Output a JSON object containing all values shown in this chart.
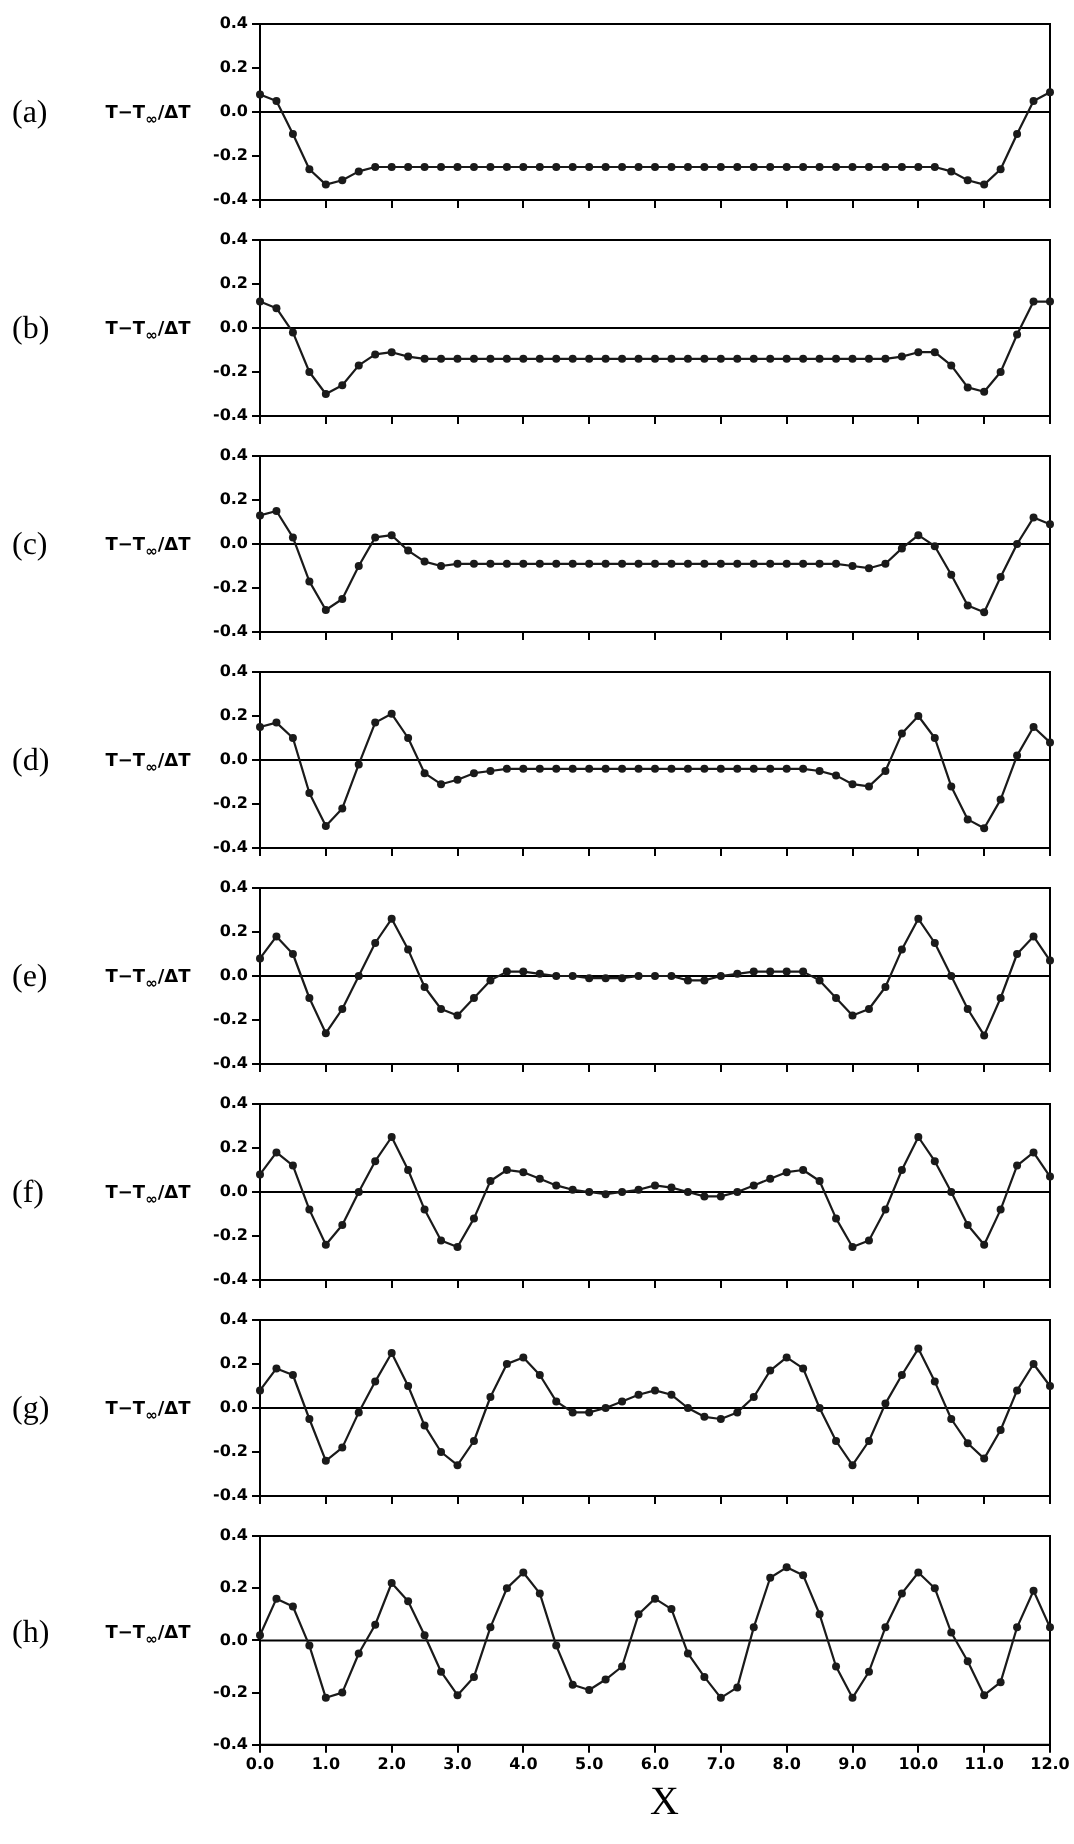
{
  "chart_data": [
    {
      "type": "line",
      "title": "(a)",
      "ylabel": "T−T$_{∞}$/ΔT",
      "xlim": [
        0,
        12
      ],
      "ylim": [
        -0.4,
        0.4
      ],
      "tick_labels": "y",
      "marker": "circle",
      "grid": false,
      "ref_lines": [
        {
          "axis": "y",
          "value": 0
        }
      ],
      "yticks": [
        {
          "value": -0.4,
          "label": "-0.4"
        },
        {
          "value": -0.2,
          "label": "-0.2"
        },
        {
          "value": 0,
          "label": "0.0"
        },
        {
          "value": 0.2,
          "label": "0.2"
        },
        {
          "value": 0.4,
          "label": "0.4"
        }
      ],
      "x": [
        0,
        0.25,
        0.5,
        0.75,
        1,
        1.25,
        1.5,
        1.75,
        2,
        2.25,
        2.5,
        2.75,
        3,
        3.25,
        3.5,
        3.75,
        4,
        4.25,
        4.5,
        4.75,
        5,
        5.25,
        5.5,
        5.75,
        6,
        6.25,
        6.5,
        6.75,
        7,
        7.25,
        7.5,
        7.75,
        8,
        8.25,
        8.5,
        8.75,
        9,
        9.25,
        9.5,
        9.75,
        10,
        10.25,
        10.5,
        10.75,
        11,
        11.25,
        11.5,
        11.75,
        12
      ],
      "series": [
        {
          "color": "#1a1a1a",
          "values": [
            0.08,
            0.05,
            -0.1,
            -0.26,
            -0.33,
            -0.31,
            -0.27,
            -0.25,
            -0.25,
            -0.25,
            -0.25,
            -0.25,
            -0.25,
            -0.25,
            -0.25,
            -0.25,
            -0.25,
            -0.25,
            -0.25,
            -0.25,
            -0.25,
            -0.25,
            -0.25,
            -0.25,
            -0.25,
            -0.25,
            -0.25,
            -0.25,
            -0.25,
            -0.25,
            -0.25,
            -0.25,
            -0.25,
            -0.25,
            -0.25,
            -0.25,
            -0.25,
            -0.25,
            -0.25,
            -0.25,
            -0.25,
            -0.25,
            -0.27,
            -0.31,
            -0.33,
            -0.26,
            -0.1,
            0.05,
            0.09
          ]
        }
      ]
    },
    {
      "type": "line",
      "title": "(b)",
      "ylabel": "T−T$_{∞}$/ΔT",
      "xlim": [
        0,
        12
      ],
      "ylim": [
        -0.4,
        0.4
      ],
      "tick_labels": "y",
      "marker": "circle",
      "grid": false,
      "ref_lines": [
        {
          "axis": "y",
          "value": 0
        }
      ],
      "yticks": [
        {
          "value": -0.4,
          "label": "-0.4"
        },
        {
          "value": -0.2,
          "label": "-0.2"
        },
        {
          "value": 0,
          "label": "0.0"
        },
        {
          "value": 0.2,
          "label": "0.2"
        },
        {
          "value": 0.4,
          "label": "0.4"
        }
      ],
      "x": [
        0,
        0.25,
        0.5,
        0.75,
        1,
        1.25,
        1.5,
        1.75,
        2,
        2.25,
        2.5,
        2.75,
        3,
        3.25,
        3.5,
        3.75,
        4,
        4.25,
        4.5,
        4.75,
        5,
        5.25,
        5.5,
        5.75,
        6,
        6.25,
        6.5,
        6.75,
        7,
        7.25,
        7.5,
        7.75,
        8,
        8.25,
        8.5,
        8.75,
        9,
        9.25,
        9.5,
        9.75,
        10,
        10.25,
        10.5,
        10.75,
        11,
        11.25,
        11.5,
        11.75,
        12
      ],
      "series": [
        {
          "color": "#1a1a1a",
          "values": [
            0.12,
            0.09,
            -0.02,
            -0.2,
            -0.3,
            -0.26,
            -0.17,
            -0.12,
            -0.11,
            -0.13,
            -0.14,
            -0.14,
            -0.14,
            -0.14,
            -0.14,
            -0.14,
            -0.14,
            -0.14,
            -0.14,
            -0.14,
            -0.14,
            -0.14,
            -0.14,
            -0.14,
            -0.14,
            -0.14,
            -0.14,
            -0.14,
            -0.14,
            -0.14,
            -0.14,
            -0.14,
            -0.14,
            -0.14,
            -0.14,
            -0.14,
            -0.14,
            -0.14,
            -0.14,
            -0.13,
            -0.11,
            -0.11,
            -0.17,
            -0.27,
            -0.29,
            -0.2,
            -0.03,
            0.12,
            0.12
          ]
        }
      ]
    },
    {
      "type": "line",
      "title": "(c)",
      "ylabel": "T−T$_{∞}$/ΔT",
      "xlim": [
        0,
        12
      ],
      "ylim": [
        -0.4,
        0.4
      ],
      "tick_labels": "y",
      "marker": "circle",
      "grid": false,
      "ref_lines": [
        {
          "axis": "y",
          "value": 0
        }
      ],
      "yticks": [
        {
          "value": -0.4,
          "label": "-0.4"
        },
        {
          "value": -0.2,
          "label": "-0.2"
        },
        {
          "value": 0,
          "label": "0.0"
        },
        {
          "value": 0.2,
          "label": "0.2"
        },
        {
          "value": 0.4,
          "label": "0.4"
        }
      ],
      "x": [
        0,
        0.25,
        0.5,
        0.75,
        1,
        1.25,
        1.5,
        1.75,
        2,
        2.25,
        2.5,
        2.75,
        3,
        3.25,
        3.5,
        3.75,
        4,
        4.25,
        4.5,
        4.75,
        5,
        5.25,
        5.5,
        5.75,
        6,
        6.25,
        6.5,
        6.75,
        7,
        7.25,
        7.5,
        7.75,
        8,
        8.25,
        8.5,
        8.75,
        9,
        9.25,
        9.5,
        9.75,
        10,
        10.25,
        10.5,
        10.75,
        11,
        11.25,
        11.5,
        11.75,
        12
      ],
      "series": [
        {
          "color": "#1a1a1a",
          "values": [
            0.13,
            0.15,
            0.03,
            -0.17,
            -0.3,
            -0.25,
            -0.1,
            0.03,
            0.04,
            -0.03,
            -0.08,
            -0.1,
            -0.09,
            -0.09,
            -0.09,
            -0.09,
            -0.09,
            -0.09,
            -0.09,
            -0.09,
            -0.09,
            -0.09,
            -0.09,
            -0.09,
            -0.09,
            -0.09,
            -0.09,
            -0.09,
            -0.09,
            -0.09,
            -0.09,
            -0.09,
            -0.09,
            -0.09,
            -0.09,
            -0.09,
            -0.1,
            -0.11,
            -0.09,
            -0.02,
            0.04,
            -0.01,
            -0.14,
            -0.28,
            -0.31,
            -0.15,
            0.0,
            0.12,
            0.09
          ]
        }
      ]
    },
    {
      "type": "line",
      "title": "(d)",
      "ylabel": "T−T$_{∞}$/ΔT",
      "xlim": [
        0,
        12
      ],
      "ylim": [
        -0.4,
        0.4
      ],
      "tick_labels": "y",
      "marker": "circle",
      "grid": false,
      "ref_lines": [
        {
          "axis": "y",
          "value": 0
        }
      ],
      "yticks": [
        {
          "value": -0.4,
          "label": "-0.4"
        },
        {
          "value": -0.2,
          "label": "-0.2"
        },
        {
          "value": 0,
          "label": "0.0"
        },
        {
          "value": 0.2,
          "label": "0.2"
        },
        {
          "value": 0.4,
          "label": "0.4"
        }
      ],
      "x": [
        0,
        0.25,
        0.5,
        0.75,
        1,
        1.25,
        1.5,
        1.75,
        2,
        2.25,
        2.5,
        2.75,
        3,
        3.25,
        3.5,
        3.75,
        4,
        4.25,
        4.5,
        4.75,
        5,
        5.25,
        5.5,
        5.75,
        6,
        6.25,
        6.5,
        6.75,
        7,
        7.25,
        7.5,
        7.75,
        8,
        8.25,
        8.5,
        8.75,
        9,
        9.25,
        9.5,
        9.75,
        10,
        10.25,
        10.5,
        10.75,
        11,
        11.25,
        11.5,
        11.75,
        12
      ],
      "series": [
        {
          "color": "#1a1a1a",
          "values": [
            0.15,
            0.17,
            0.1,
            -0.15,
            -0.3,
            -0.22,
            -0.02,
            0.17,
            0.21,
            0.1,
            -0.06,
            -0.11,
            -0.09,
            -0.06,
            -0.05,
            -0.04,
            -0.04,
            -0.04,
            -0.04,
            -0.04,
            -0.04,
            -0.04,
            -0.04,
            -0.04,
            -0.04,
            -0.04,
            -0.04,
            -0.04,
            -0.04,
            -0.04,
            -0.04,
            -0.04,
            -0.04,
            -0.04,
            -0.05,
            -0.07,
            -0.11,
            -0.12,
            -0.05,
            0.12,
            0.2,
            0.1,
            -0.12,
            -0.27,
            -0.31,
            -0.18,
            0.02,
            0.15,
            0.08
          ]
        }
      ]
    },
    {
      "type": "line",
      "title": "(e)",
      "ylabel": "T−T$_{∞}$/ΔT",
      "xlim": [
        0,
        12
      ],
      "ylim": [
        -0.4,
        0.4
      ],
      "tick_labels": "y",
      "marker": "circle",
      "grid": false,
      "ref_lines": [
        {
          "axis": "y",
          "value": 0
        }
      ],
      "yticks": [
        {
          "value": -0.4,
          "label": "-0.4"
        },
        {
          "value": -0.2,
          "label": "-0.2"
        },
        {
          "value": 0,
          "label": "0.0"
        },
        {
          "value": 0.2,
          "label": "0.2"
        },
        {
          "value": 0.4,
          "label": "0.4"
        }
      ],
      "x": [
        0,
        0.25,
        0.5,
        0.75,
        1,
        1.25,
        1.5,
        1.75,
        2,
        2.25,
        2.5,
        2.75,
        3,
        3.25,
        3.5,
        3.75,
        4,
        4.25,
        4.5,
        4.75,
        5,
        5.25,
        5.5,
        5.75,
        6,
        6.25,
        6.5,
        6.75,
        7,
        7.25,
        7.5,
        7.75,
        8,
        8.25,
        8.5,
        8.75,
        9,
        9.25,
        9.5,
        9.75,
        10,
        10.25,
        10.5,
        10.75,
        11,
        11.25,
        11.5,
        11.75,
        12
      ],
      "series": [
        {
          "color": "#1a1a1a",
          "values": [
            0.08,
            0.18,
            0.1,
            -0.1,
            -0.26,
            -0.15,
            0.0,
            0.15,
            0.26,
            0.12,
            -0.05,
            -0.15,
            -0.18,
            -0.1,
            -0.02,
            0.02,
            0.02,
            0.01,
            0.0,
            0.0,
            -0.01,
            -0.01,
            -0.01,
            0.0,
            0.0,
            0.0,
            -0.02,
            -0.02,
            0.0,
            0.01,
            0.02,
            0.02,
            0.02,
            0.02,
            -0.02,
            -0.1,
            -0.18,
            -0.15,
            -0.05,
            0.12,
            0.26,
            0.15,
            0.0,
            -0.15,
            -0.27,
            -0.1,
            0.1,
            0.18,
            0.07
          ]
        }
      ]
    },
    {
      "type": "line",
      "title": "(f)",
      "ylabel": "T−T$_{∞}$/ΔT",
      "xlim": [
        0,
        12
      ],
      "ylim": [
        -0.4,
        0.4
      ],
      "tick_labels": "y",
      "marker": "circle",
      "grid": false,
      "ref_lines": [
        {
          "axis": "y",
          "value": 0
        }
      ],
      "yticks": [
        {
          "value": -0.4,
          "label": "-0.4"
        },
        {
          "value": -0.2,
          "label": "-0.2"
        },
        {
          "value": 0,
          "label": "0.0"
        },
        {
          "value": 0.2,
          "label": "0.2"
        },
        {
          "value": 0.4,
          "label": "0.4"
        }
      ],
      "x": [
        0,
        0.25,
        0.5,
        0.75,
        1,
        1.25,
        1.5,
        1.75,
        2,
        2.25,
        2.5,
        2.75,
        3,
        3.25,
        3.5,
        3.75,
        4,
        4.25,
        4.5,
        4.75,
        5,
        5.25,
        5.5,
        5.75,
        6,
        6.25,
        6.5,
        6.75,
        7,
        7.25,
        7.5,
        7.75,
        8,
        8.25,
        8.5,
        8.75,
        9,
        9.25,
        9.5,
        9.75,
        10,
        10.25,
        10.5,
        10.75,
        11,
        11.25,
        11.5,
        11.75,
        12
      ],
      "series": [
        {
          "color": "#1a1a1a",
          "values": [
            0.08,
            0.18,
            0.12,
            -0.08,
            -0.24,
            -0.15,
            0.0,
            0.14,
            0.25,
            0.1,
            -0.08,
            -0.22,
            -0.25,
            -0.12,
            0.05,
            0.1,
            0.09,
            0.06,
            0.03,
            0.01,
            0.0,
            -0.01,
            0.0,
            0.01,
            0.03,
            0.02,
            0.0,
            -0.02,
            -0.02,
            0.0,
            0.03,
            0.06,
            0.09,
            0.1,
            0.05,
            -0.12,
            -0.25,
            -0.22,
            -0.08,
            0.1,
            0.25,
            0.14,
            0.0,
            -0.15,
            -0.24,
            -0.08,
            0.12,
            0.18,
            0.07
          ]
        }
      ]
    },
    {
      "type": "line",
      "title": "(g)",
      "ylabel": "T−T$_{∞}$/ΔT",
      "xlim": [
        0,
        12
      ],
      "ylim": [
        -0.4,
        0.4
      ],
      "tick_labels": "y",
      "marker": "circle",
      "grid": false,
      "ref_lines": [
        {
          "axis": "y",
          "value": 0
        }
      ],
      "yticks": [
        {
          "value": -0.4,
          "label": "-0.4"
        },
        {
          "value": -0.2,
          "label": "-0.2"
        },
        {
          "value": 0,
          "label": "0.0"
        },
        {
          "value": 0.2,
          "label": "0.2"
        },
        {
          "value": 0.4,
          "label": "0.4"
        }
      ],
      "x": [
        0,
        0.25,
        0.5,
        0.75,
        1,
        1.25,
        1.5,
        1.75,
        2,
        2.25,
        2.5,
        2.75,
        3,
        3.25,
        3.5,
        3.75,
        4,
        4.25,
        4.5,
        4.75,
        5,
        5.25,
        5.5,
        5.75,
        6,
        6.25,
        6.5,
        6.75,
        7,
        7.25,
        7.5,
        7.75,
        8,
        8.25,
        8.5,
        8.75,
        9,
        9.25,
        9.5,
        9.75,
        10,
        10.25,
        10.5,
        10.75,
        11,
        11.25,
        11.5,
        11.75,
        12
      ],
      "series": [
        {
          "color": "#1a1a1a",
          "values": [
            0.08,
            0.18,
            0.15,
            -0.05,
            -0.24,
            -0.18,
            -0.02,
            0.12,
            0.25,
            0.1,
            -0.08,
            -0.2,
            -0.26,
            -0.15,
            0.05,
            0.2,
            0.23,
            0.15,
            0.03,
            -0.02,
            -0.02,
            0.0,
            0.03,
            0.06,
            0.08,
            0.06,
            0.0,
            -0.04,
            -0.05,
            -0.02,
            0.05,
            0.17,
            0.23,
            0.18,
            0.0,
            -0.15,
            -0.26,
            -0.15,
            0.02,
            0.15,
            0.27,
            0.12,
            -0.05,
            -0.16,
            -0.23,
            -0.1,
            0.08,
            0.2,
            0.1
          ]
        }
      ]
    },
    {
      "type": "line",
      "title": "(h)",
      "ylabel": "T−T$_{∞}$/ΔT",
      "xlabel": "X",
      "xlim": [
        0,
        12
      ],
      "ylim": [
        -0.4,
        0.4
      ],
      "marker": "circle",
      "grid": false,
      "ref_lines": [
        {
          "axis": "y",
          "value": 0
        }
      ],
      "xticks": [
        {
          "value": 0,
          "label": "0.0"
        },
        {
          "value": 1,
          "label": "1.0"
        },
        {
          "value": 2,
          "label": "2.0"
        },
        {
          "value": 3,
          "label": "3.0"
        },
        {
          "value": 4,
          "label": "4.0"
        },
        {
          "value": 5,
          "label": "5.0"
        },
        {
          "value": 6,
          "label": "6.0"
        },
        {
          "value": 7,
          "label": "7.0"
        },
        {
          "value": 8,
          "label": "8.0"
        },
        {
          "value": 9,
          "label": "9.0"
        },
        {
          "value": 10,
          "label": "10.0"
        },
        {
          "value": 11,
          "label": "11.0"
        },
        {
          "value": 12,
          "label": "12.0"
        }
      ],
      "yticks": [
        {
          "value": -0.4,
          "label": "-0.4"
        },
        {
          "value": -0.2,
          "label": "-0.2"
        },
        {
          "value": 0,
          "label": "0.0"
        },
        {
          "value": 0.2,
          "label": "0.2"
        },
        {
          "value": 0.4,
          "label": "0.4"
        }
      ],
      "x": [
        0,
        0.25,
        0.5,
        0.75,
        1,
        1.25,
        1.5,
        1.75,
        2,
        2.25,
        2.5,
        2.75,
        3,
        3.25,
        3.5,
        3.75,
        4,
        4.25,
        4.5,
        4.75,
        5,
        5.25,
        5.5,
        5.75,
        6,
        6.25,
        6.5,
        6.75,
        7,
        7.25,
        7.5,
        7.75,
        8,
        8.25,
        8.5,
        8.75,
        9,
        9.25,
        9.5,
        9.75,
        10,
        10.25,
        10.5,
        10.75,
        11,
        11.25,
        11.5,
        11.75,
        12
      ],
      "series": [
        {
          "color": "#1a1a1a",
          "values": [
            0.02,
            0.16,
            0.13,
            -0.02,
            -0.22,
            -0.2,
            -0.05,
            0.06,
            0.22,
            0.15,
            0.02,
            -0.12,
            -0.21,
            -0.14,
            0.05,
            0.2,
            0.26,
            0.18,
            -0.02,
            -0.17,
            -0.19,
            -0.15,
            -0.1,
            0.1,
            0.16,
            0.12,
            -0.05,
            -0.14,
            -0.22,
            -0.18,
            0.05,
            0.24,
            0.28,
            0.25,
            0.1,
            -0.1,
            -0.22,
            -0.12,
            0.05,
            0.18,
            0.26,
            0.2,
            0.03,
            -0.08,
            -0.21,
            -0.16,
            0.05,
            0.19,
            0.05
          ]
        }
      ]
    }
  ]
}
